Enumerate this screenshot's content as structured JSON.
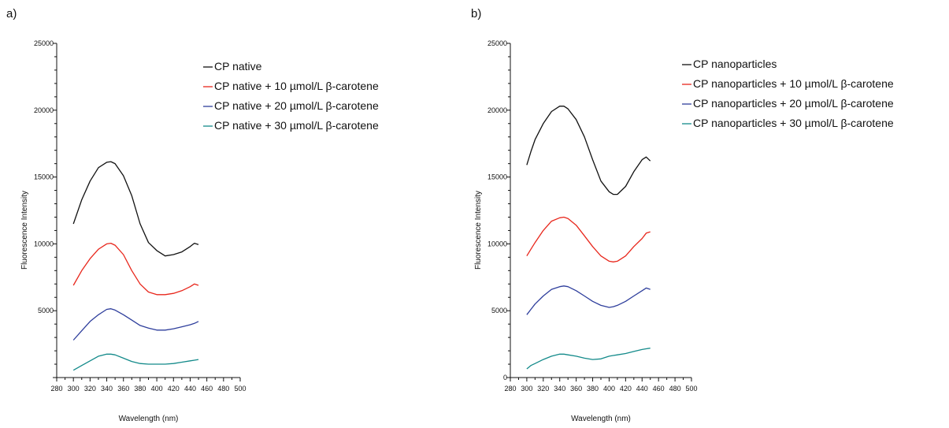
{
  "figure": {
    "panel_labels": [
      "a)",
      "b)"
    ]
  },
  "chart_data": [
    {
      "type": "line",
      "panel": "a)",
      "xlabel": "Wavelength (nm)",
      "ylabel": "Fluorescence Intensity",
      "xlim": [
        280,
        500
      ],
      "ylim": [
        0,
        25000
      ],
      "xticks": [
        280,
        300,
        320,
        340,
        360,
        380,
        400,
        420,
        440,
        460,
        480,
        500
      ],
      "yticks": [
        5000,
        10000,
        15000,
        20000,
        25000
      ],
      "ytick_labels": [
        "5000",
        "10000",
        "15000",
        "20000",
        "25000"
      ],
      "legend_position": "top-right",
      "grid": false,
      "x": [
        300,
        310,
        320,
        330,
        340,
        345,
        350,
        360,
        370,
        380,
        390,
        400,
        410,
        420,
        430,
        440,
        445,
        450
      ],
      "series": [
        {
          "name": "CP native",
          "color": "#111111",
          "values": [
            11500,
            13300,
            14700,
            15700,
            16100,
            16150,
            16000,
            15100,
            13600,
            11500,
            10100,
            9500,
            9100,
            9200,
            9400,
            9800,
            10050,
            9950
          ]
        },
        {
          "name": "CP native + 10 µmol/L β-carotene",
          "color": "#e8271c",
          "values": [
            6900,
            8000,
            8900,
            9600,
            10000,
            10050,
            9900,
            9200,
            8000,
            7000,
            6400,
            6200,
            6200,
            6300,
            6500,
            6800,
            7000,
            6900
          ]
        },
        {
          "name": "CP native + 20 µmol/L β-carotene",
          "color": "#2e3e9c",
          "values": [
            2800,
            3500,
            4200,
            4700,
            5100,
            5150,
            5050,
            4700,
            4300,
            3900,
            3700,
            3550,
            3550,
            3650,
            3800,
            3950,
            4050,
            4200
          ]
        },
        {
          "name": "CP native + 30 µmol/L β-carotene",
          "color": "#138a8a",
          "values": [
            550,
            900,
            1250,
            1600,
            1750,
            1750,
            1700,
            1450,
            1200,
            1050,
            1000,
            1000,
            1000,
            1050,
            1150,
            1250,
            1300,
            1350
          ]
        }
      ]
    },
    {
      "type": "line",
      "panel": "b)",
      "xlabel": "Wavelength (nm)",
      "ylabel": "Fluorescence Intensity",
      "xlim": [
        280,
        500
      ],
      "ylim": [
        0,
        25000
      ],
      "xticks": [
        280,
        300,
        320,
        340,
        360,
        380,
        400,
        420,
        440,
        460,
        480,
        500
      ],
      "yticks": [
        0,
        5000,
        10000,
        15000,
        20000,
        25000
      ],
      "ytick_labels": [
        "0",
        "5000",
        "10000",
        "15000",
        "20000",
        "25000"
      ],
      "legend_position": "top-right",
      "grid": false,
      "x": [
        300,
        305,
        310,
        320,
        330,
        340,
        345,
        350,
        360,
        370,
        380,
        390,
        400,
        405,
        410,
        420,
        430,
        440,
        445,
        450
      ],
      "series": [
        {
          "name": "CP nanoparticles",
          "color": "#111111",
          "values": [
            15900,
            16900,
            17800,
            19000,
            19900,
            20300,
            20300,
            20100,
            19300,
            18000,
            16300,
            14700,
            13900,
            13700,
            13700,
            14300,
            15400,
            16300,
            16500,
            16200
          ]
        },
        {
          "name": "CP nanoparticles + 10 µmol/L β-carotene",
          "color": "#e8271c",
          "values": [
            9100,
            9600,
            10100,
            11000,
            11700,
            11950,
            12000,
            11900,
            11400,
            10600,
            9800,
            9100,
            8700,
            8650,
            8700,
            9100,
            9800,
            10400,
            10800,
            10900
          ]
        },
        {
          "name": "CP nanoparticles + 20 µmol/L β-carotene",
          "color": "#2e3e9c",
          "values": [
            4700,
            5100,
            5500,
            6100,
            6600,
            6800,
            6850,
            6800,
            6500,
            6100,
            5700,
            5400,
            5250,
            5300,
            5400,
            5700,
            6100,
            6500,
            6700,
            6600
          ]
        },
        {
          "name": "CP nanoparticles + 30 µmol/L β-carotene",
          "color": "#138a8a",
          "values": [
            650,
            900,
            1050,
            1350,
            1600,
            1750,
            1750,
            1700,
            1600,
            1450,
            1350,
            1400,
            1600,
            1650,
            1700,
            1800,
            1950,
            2100,
            2150,
            2200
          ]
        }
      ]
    }
  ]
}
